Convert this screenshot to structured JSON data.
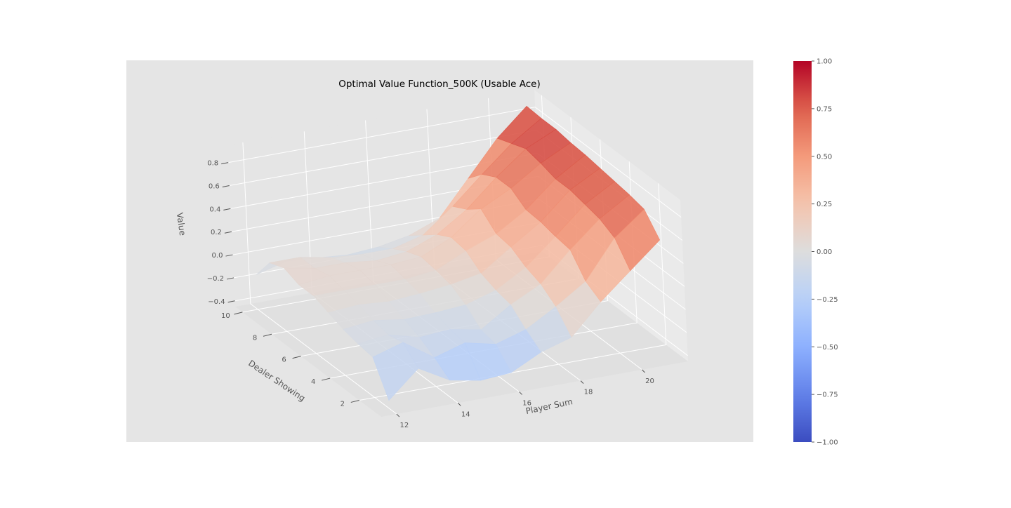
{
  "chart_data": {
    "type": "surface",
    "title": "Optimal Value Function_500K (Usable Ace)",
    "xlabel": "Player Sum",
    "ylabel": "Dealer Showing",
    "zlabel": "Value",
    "x": [
      12,
      13,
      14,
      15,
      16,
      17,
      18,
      19,
      20,
      21
    ],
    "y": [
      1,
      2,
      3,
      4,
      5,
      6,
      7,
      8,
      9,
      10
    ],
    "xlim": [
      11.5,
      21.5
    ],
    "ylim": [
      0.5,
      10.5
    ],
    "zlim": [
      -0.45,
      0.95
    ],
    "xticks": [
      {
        "value": 12,
        "label": "12"
      },
      {
        "value": 14,
        "label": "14"
      },
      {
        "value": 16,
        "label": "16"
      },
      {
        "value": 18,
        "label": "18"
      },
      {
        "value": 20,
        "label": "20"
      }
    ],
    "yticks": [
      {
        "value": 2,
        "label": "2"
      },
      {
        "value": 4,
        "label": "4"
      },
      {
        "value": 6,
        "label": "6"
      },
      {
        "value": 8,
        "label": "8"
      },
      {
        "value": 10,
        "label": "10"
      }
    ],
    "zticks": [
      {
        "value": -0.4,
        "label": "−0.4"
      },
      {
        "value": -0.2,
        "label": "−0.2"
      },
      {
        "value": 0.0,
        "label": "0.0"
      },
      {
        "value": 0.2,
        "label": "0.2"
      },
      {
        "value": 0.4,
        "label": "0.4"
      },
      {
        "value": 0.6,
        "label": "0.6"
      },
      {
        "value": 0.8,
        "label": "0.8"
      }
    ],
    "values": [
      [
        -0.38,
        -0.15,
        -0.3,
        -0.35,
        -0.33,
        -0.2,
        -0.12,
        0.14,
        0.36,
        0.58
      ],
      [
        -0.1,
        -0.02,
        -0.2,
        -0.12,
        -0.18,
        -0.1,
        0.05,
        0.22,
        0.55,
        0.75
      ],
      [
        -0.08,
        -0.05,
        -0.12,
        -0.1,
        -0.15,
        0.02,
        0.15,
        0.4,
        0.62,
        0.78
      ],
      [
        -0.05,
        -0.02,
        -0.06,
        -0.05,
        -0.03,
        0.05,
        0.2,
        0.42,
        0.65,
        0.8
      ],
      [
        0.0,
        0.02,
        0.0,
        0.02,
        0.05,
        0.1,
        0.28,
        0.45,
        0.68,
        0.82
      ],
      [
        0.05,
        0.05,
        0.05,
        0.05,
        0.08,
        0.2,
        0.3,
        0.46,
        0.68,
        0.84
      ],
      [
        0.05,
        0.08,
        0.08,
        0.08,
        0.1,
        0.22,
        0.42,
        0.55,
        0.72,
        0.85
      ],
      [
        0.1,
        0.05,
        0.05,
        0.02,
        0.05,
        0.15,
        0.32,
        0.55,
        0.75,
        0.87
      ],
      [
        0.05,
        0.05,
        0.0,
        -0.02,
        -0.02,
        0.05,
        0.25,
        0.48,
        0.7,
        0.87
      ],
      [
        -0.15,
        -0.08,
        -0.1,
        -0.12,
        -0.1,
        -0.05,
        0.05,
        0.35,
        0.65,
        0.88
      ]
    ],
    "colorbar": {
      "colormap": "coolwarm",
      "range": [
        -1.0,
        1.0
      ],
      "ticks": [
        {
          "value": 1.0,
          "label": "1.00"
        },
        {
          "value": 0.75,
          "label": "0.75"
        },
        {
          "value": 0.5,
          "label": "0.50"
        },
        {
          "value": 0.25,
          "label": "0.25"
        },
        {
          "value": 0.0,
          "label": "0.00"
        },
        {
          "value": -0.25,
          "label": "−0.25"
        },
        {
          "value": -0.5,
          "label": "−0.50"
        },
        {
          "value": -0.75,
          "label": "−0.75"
        },
        {
          "value": -1.0,
          "label": "−1.00"
        }
      ]
    },
    "grid": true,
    "colors": {
      "pane_background": "#e5e5e5",
      "grid": "#ffffff",
      "cmap_low": "#3b4cc0",
      "cmap_mid": "#dddddd",
      "cmap_high": "#b40426"
    }
  }
}
